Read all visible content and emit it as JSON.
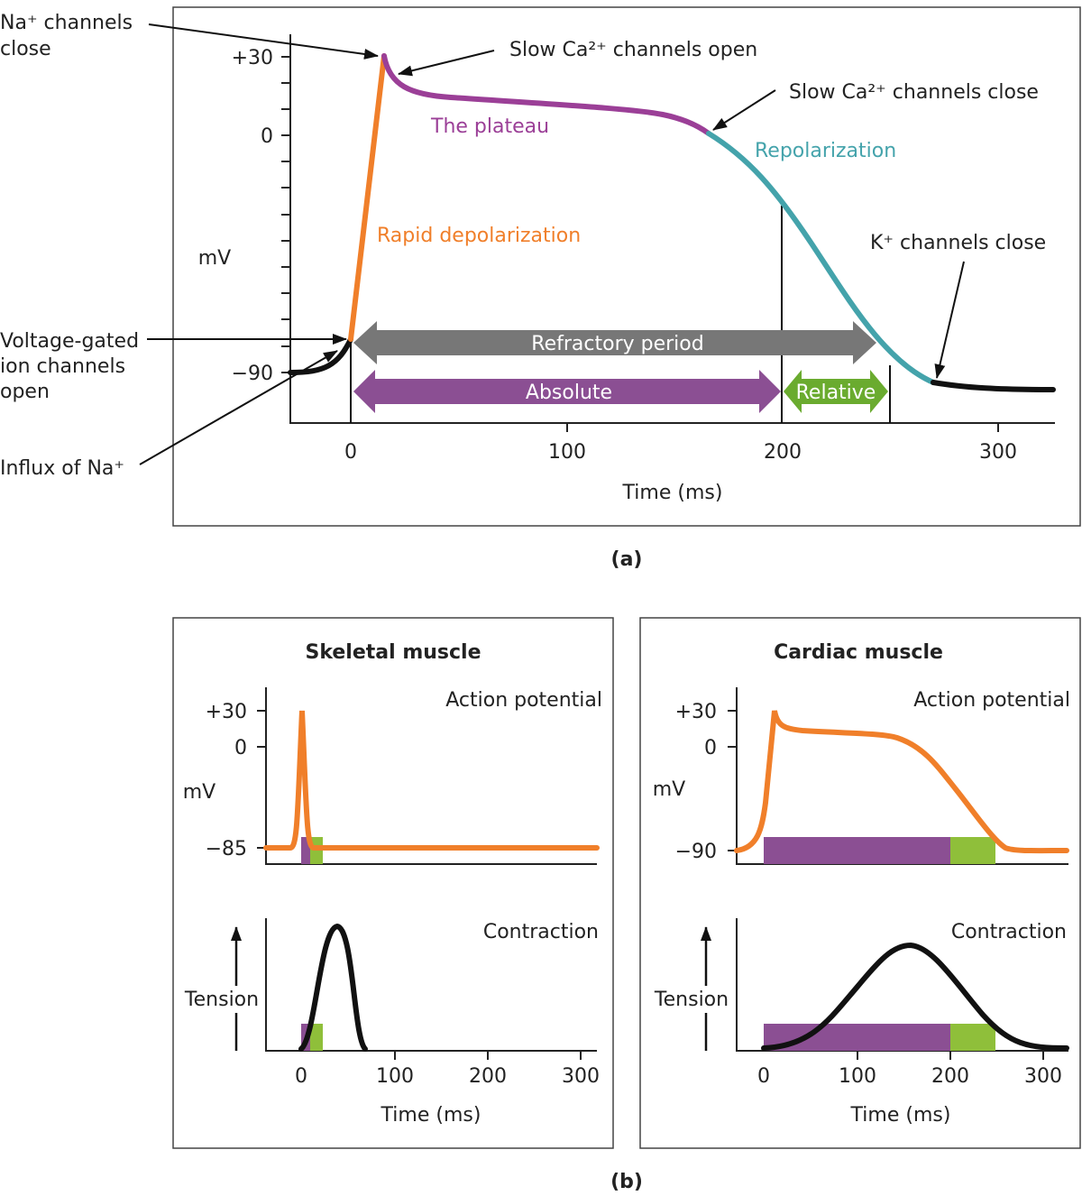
{
  "panel_a": {
    "caption": "(a)",
    "y_ticks": [
      "+30",
      "0",
      "−90"
    ],
    "y_label": "mV",
    "x_ticks": [
      "0",
      "100",
      "200",
      "300"
    ],
    "x_label": "Time (ms)",
    "annotations": {
      "na_close": [
        "Na⁺ channels",
        "close"
      ],
      "ca_open": "Slow Ca²⁺ channels open",
      "ca_close": "Slow Ca²⁺ channels close",
      "k_close": "K⁺ channels close",
      "voltage_gated": [
        "Voltage-gated",
        "ion channels",
        "open"
      ],
      "influx": "Influx of Na⁺"
    },
    "phases": {
      "plateau": "The plateau",
      "repolarization": "Repolarization",
      "rapid_depolarization": "Rapid depolarization"
    },
    "periods": {
      "refractory": "Refractory period",
      "absolute": "Absolute",
      "relative": "Relative"
    }
  },
  "panel_b": {
    "caption": "(b)",
    "skeletal": {
      "title": "Skeletal muscle",
      "ap_label": "Action potential",
      "y_ticks": [
        "+30",
        "0",
        "−85"
      ],
      "y_label": "mV",
      "contraction_label": "Contraction",
      "tension_label": "Tension",
      "x_ticks": [
        "0",
        "100",
        "200",
        "300"
      ],
      "x_label": "Time (ms)"
    },
    "cardiac": {
      "title": "Cardiac muscle",
      "ap_label": "Action potential",
      "y_ticks": [
        "+30",
        "0",
        "−90"
      ],
      "y_label": "mV",
      "contraction_label": "Contraction",
      "tension_label": "Tension",
      "x_ticks": [
        "0",
        "100",
        "200",
        "300"
      ],
      "x_label": "Time (ms)"
    }
  },
  "colors": {
    "depolarization": "#f07f2a",
    "plateau": "#9b3f97",
    "repolarization": "#44a3ab",
    "refractory": "#777777",
    "absolute": "#8b4f93",
    "relative": "#8fbf3a"
  }
}
